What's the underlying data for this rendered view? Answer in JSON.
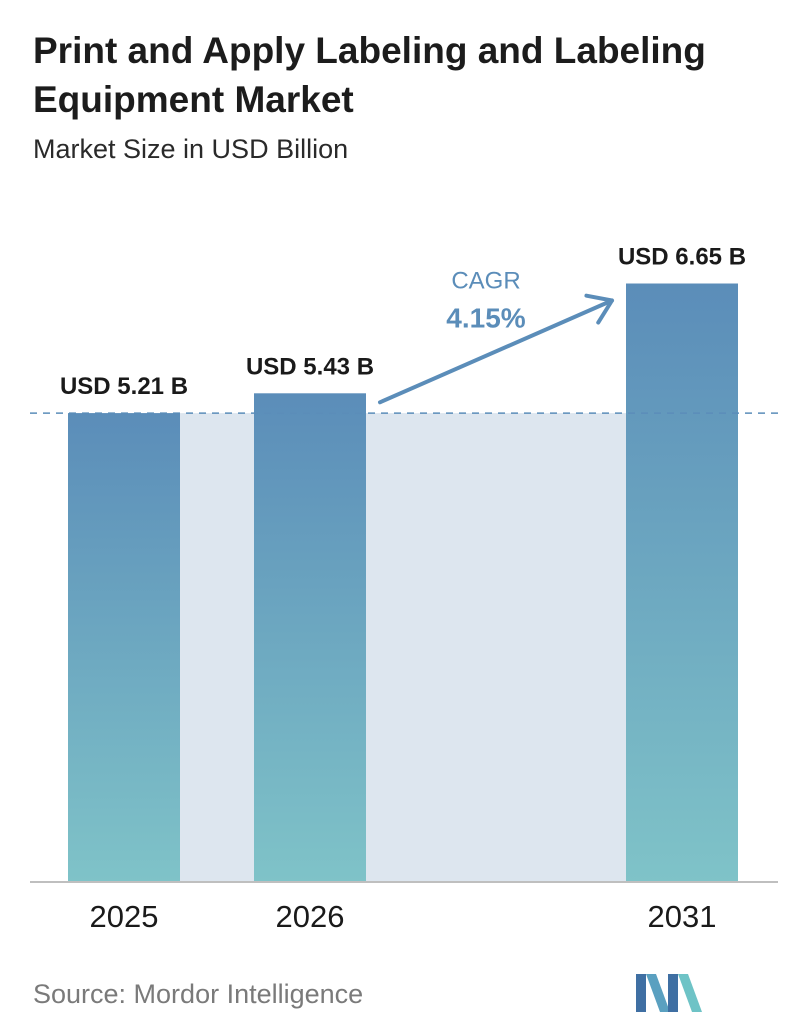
{
  "title": "Print and Apply Labeling and Labeling Equipment Market",
  "subtitle": "Market Size in USD Billion",
  "source": "Source:  Mordor Intelligence",
  "chart_data": {
    "type": "bar",
    "categories": [
      "2025",
      "2026",
      "2031"
    ],
    "values": [
      5.21,
      5.43,
      6.65
    ],
    "value_labels": [
      "USD 5.21 B",
      "USD 5.43 B",
      "USD 6.65 B"
    ],
    "ylim": [
      0,
      7.8
    ],
    "grid": false,
    "reference_line": 5.21,
    "cagr": {
      "label": "CAGR",
      "value": "4.15%"
    },
    "colors": {
      "bar_top": "#5b8db9",
      "bar_bottom": "#7fc3c8",
      "band": "#dde6ef",
      "arrow": "#5b8db9",
      "cagr_text": "#5b8db9",
      "ref_line": "#5b8db9"
    }
  }
}
